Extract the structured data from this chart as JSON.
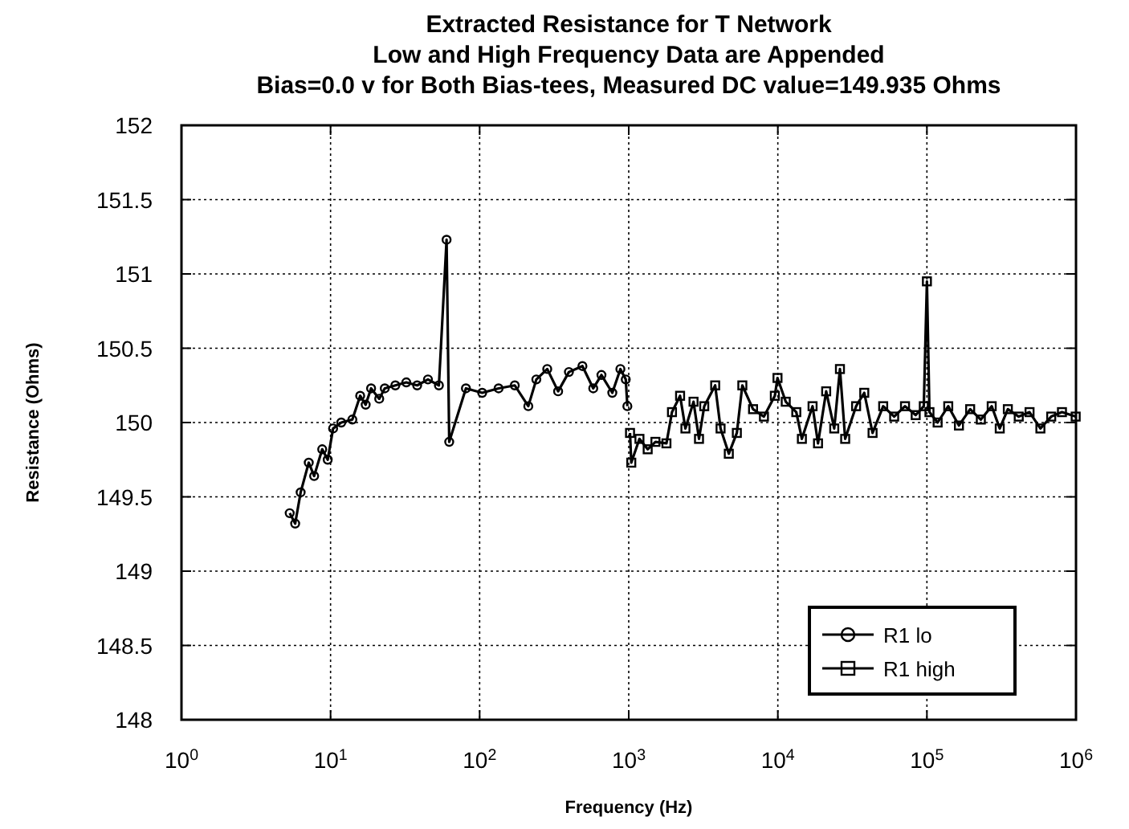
{
  "chart_data": {
    "type": "line",
    "title": "Extracted Resistance for T Network",
    "subtitle": "Low and High Frequency Data are Appended\nBias=0.0 v for Both Bias-tees, Measured DC value=149.935 Ohms",
    "xlabel": "Frequency (Hz)",
    "ylabel": "Resistance (Ohms)",
    "log": "x",
    "grid": true,
    "legend": "bottom right",
    "line_style": "solid",
    "xlim": [
      1,
      1000000
    ],
    "xticks": [
      {
        "value": 1,
        "label": "10$^{0}$"
      },
      {
        "value": 10,
        "label": "10$^{1}$"
      },
      {
        "value": 100,
        "label": "10$^{2}$"
      },
      {
        "value": 1000,
        "label": "10$^{3}$"
      },
      {
        "value": 10000,
        "label": "10$^{4}$"
      },
      {
        "value": 100000,
        "label": "10$^{5}$"
      },
      {
        "value": 1000000,
        "label": "10$^{6}$"
      }
    ],
    "ylim": [
      148,
      152
    ],
    "yticks": [
      148,
      148.5,
      149,
      149.5,
      150,
      150.5,
      151,
      151.5,
      152
    ],
    "series": [
      {
        "name": "R1 lo",
        "color": "#000000",
        "marker": "circle",
        "x": [
          5.32,
          5.79,
          6.3,
          7.14,
          7.76,
          8.79,
          9.57,
          10.4,
          11.8,
          14,
          15.8,
          17.2,
          18.7,
          21.2,
          23.1,
          27.2,
          32.2,
          38.1,
          45,
          53.3,
          60,
          62.5,
          80.9,
          104,
          134,
          172,
          212,
          240,
          284,
          336,
          397,
          489,
          578,
          656,
          776,
          879,
          955,
          979
        ],
        "values": [
          149.39,
          149.32,
          149.53,
          149.73,
          149.64,
          149.82,
          149.75,
          149.96,
          150,
          150.02,
          150.18,
          150.12,
          150.23,
          150.16,
          150.23,
          150.25,
          150.27,
          150.25,
          150.29,
          150.25,
          151.23,
          149.87,
          150.23,
          150.2,
          150.23,
          150.25,
          150.11,
          150.29,
          150.36,
          150.21,
          150.34,
          150.38,
          150.23,
          150.32,
          150.2,
          150.36,
          150.29,
          150.11
        ]
      },
      {
        "name": "R1 high",
        "color": "#000000",
        "marker": "square",
        "x": [
          1020,
          1040,
          1180,
          1340,
          1510,
          1790,
          1950,
          2210,
          2400,
          2720,
          2960,
          3210,
          3800,
          4130,
          4690,
          5310,
          5780,
          6820,
          8070,
          9550,
          9950,
          11300,
          13300,
          14500,
          17100,
          18600,
          21100,
          23900,
          26100,
          28300,
          33500,
          38000,
          43200,
          50900,
          60300,
          71300,
          84100,
          95300,
          100000,
          104000,
          118000,
          139000,
          164000,
          195000,
          230000,
          272000,
          308000,
          349000,
          413000,
          488000,
          577000,
          682000,
          805000,
          995000
        ],
        "values": [
          149.93,
          149.73,
          149.89,
          149.82,
          149.87,
          149.86,
          150.07,
          150.18,
          149.96,
          150.14,
          149.89,
          150.11,
          150.25,
          149.96,
          149.79,
          149.93,
          150.25,
          150.09,
          150.04,
          150.18,
          150.3,
          150.14,
          150.07,
          149.89,
          150.11,
          149.86,
          150.21,
          149.96,
          150.36,
          149.89,
          150.11,
          150.2,
          149.93,
          150.11,
          150.04,
          150.11,
          150.05,
          150.11,
          150.95,
          150.07,
          150,
          150.11,
          149.98,
          150.09,
          150.02,
          150.11,
          149.96,
          150.09,
          150.04,
          150.07,
          149.96,
          150.04,
          150.07,
          150.04
        ]
      }
    ]
  }
}
